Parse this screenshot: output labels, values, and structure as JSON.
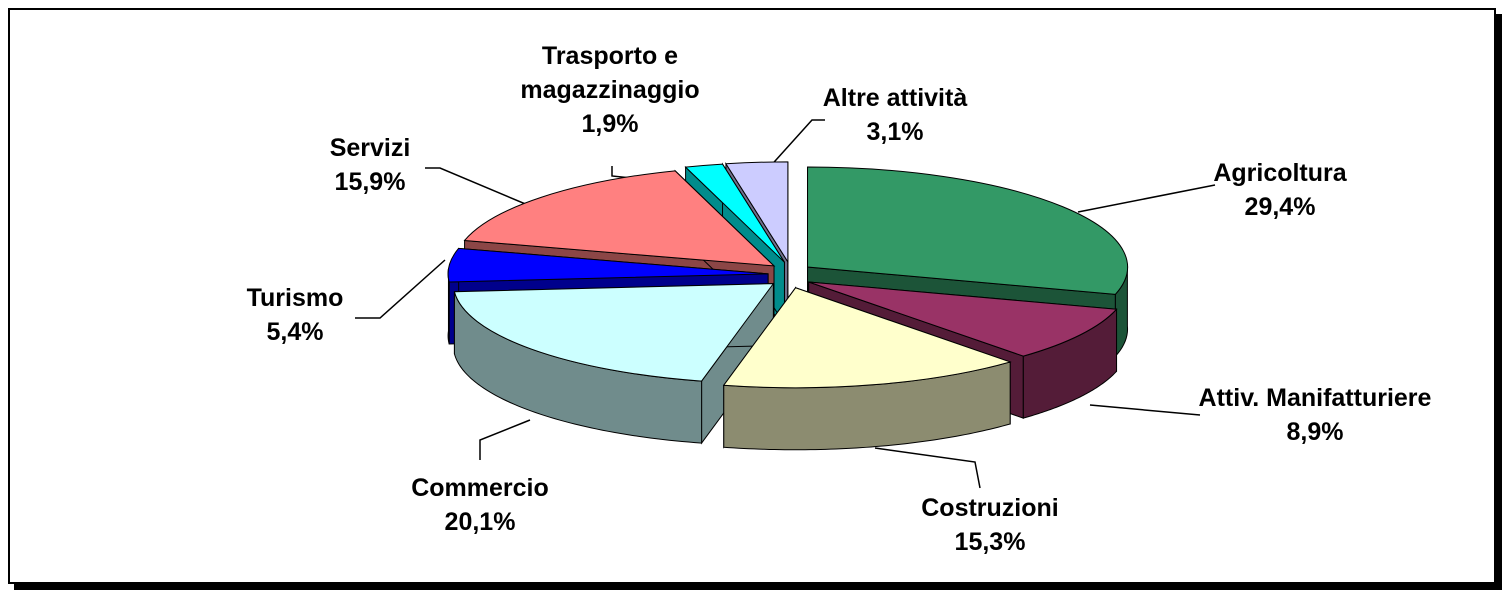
{
  "chart_data": {
    "type": "pie3d",
    "categories": [
      "Agricoltura",
      "Attiv. Manifatturiere",
      "Costruzioni",
      "Commercio",
      "Turismo",
      "Servizi",
      "Trasporto e magazzinaggio",
      "Altre attività"
    ],
    "values": [
      29.4,
      8.9,
      15.3,
      20.1,
      5.4,
      15.9,
      1.9,
      3.1
    ],
    "value_labels": [
      "29,4%",
      "8,9%",
      "15,3%",
      "20,1%",
      "5,4%",
      "15,9%",
      "1,9%",
      "3,1%"
    ],
    "colors": [
      "#339966",
      "#993366",
      "#ffffcc",
      "#ccffff",
      "#0000ff",
      "#ff8080",
      "#00ffff",
      "#ccccff"
    ]
  }
}
